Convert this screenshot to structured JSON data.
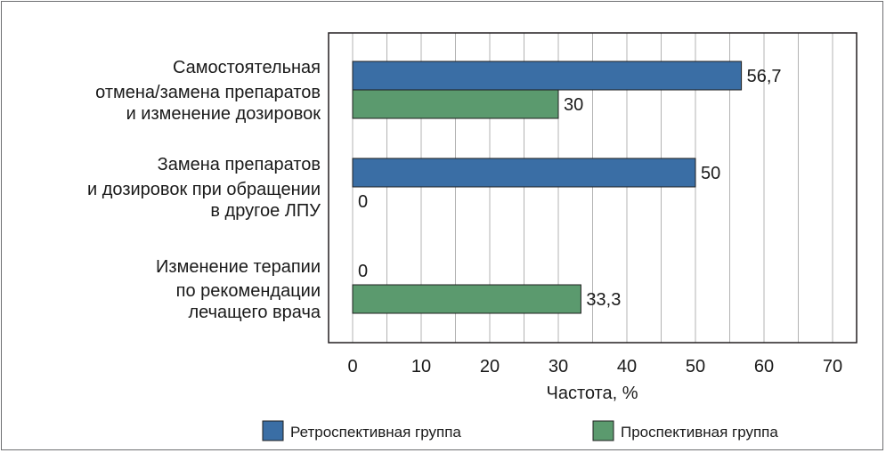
{
  "chart_data": {
    "type": "bar",
    "orientation": "horizontal",
    "categories": [
      [
        "Самостоятельная",
        "отмена/замена препаратов",
        "и изменение дозировок"
      ],
      [
        "Замена препаратов",
        "и дозировок при обращении",
        "в другое ЛПУ"
      ],
      [
        "Изменение терапии",
        "по рекомендации",
        "лечащего врача"
      ]
    ],
    "series": [
      {
        "name": "Ретроспективная группа",
        "color": "#3a6ea5",
        "values": [
          56.7,
          50,
          0
        ],
        "labels": [
          "56,7",
          "50",
          "0"
        ]
      },
      {
        "name": "Проспективная группа",
        "color": "#5b9a6e",
        "values": [
          30,
          0,
          33.3
        ],
        "labels": [
          "30",
          "0",
          "33,3"
        ]
      }
    ],
    "xlabel": "Частота, %",
    "xlim": [
      0,
      70
    ],
    "xticks": [
      0,
      10,
      20,
      30,
      40,
      50,
      60,
      70
    ],
    "grid": "vertical",
    "legend_position": "bottom"
  }
}
